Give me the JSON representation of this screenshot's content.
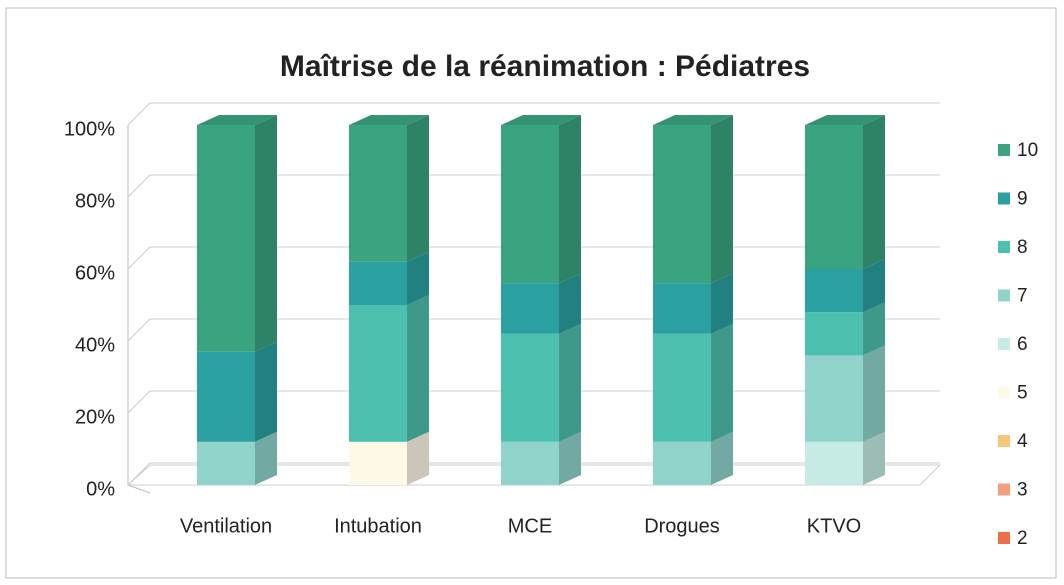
{
  "chart_data": {
    "type": "bar",
    "stacked": true,
    "title": "Maîtrise de la réanimation : Pédiatres",
    "categories": [
      "Ventilation",
      "Intubation",
      "MCE",
      "Drogues",
      "KTVO"
    ],
    "series": [
      {
        "name": "2",
        "color": "#ec6f4a",
        "values": [
          0,
          0,
          0,
          0,
          0
        ]
      },
      {
        "name": "3",
        "color": "#f0a07f",
        "values": [
          0,
          0,
          0,
          0,
          0
        ]
      },
      {
        "name": "4",
        "color": "#f5c77b",
        "values": [
          0,
          0,
          0,
          0,
          0
        ]
      },
      {
        "name": "5",
        "color": "#fdf8e8",
        "values": [
          0,
          12,
          0,
          0,
          0
        ]
      },
      {
        "name": "6",
        "color": "#c6ebe4",
        "values": [
          0,
          0,
          0,
          0,
          12
        ]
      },
      {
        "name": "7",
        "color": "#8fd3cb",
        "values": [
          12,
          0,
          12,
          12,
          24
        ]
      },
      {
        "name": "8",
        "color": "#4dbfae",
        "values": [
          0,
          38,
          30,
          30,
          12
        ]
      },
      {
        "name": "9",
        "color": "#2aa0a0",
        "values": [
          25,
          12,
          14,
          14,
          12
        ]
      },
      {
        "name": "10",
        "color": "#3aa37f",
        "values": [
          63,
          38,
          44,
          44,
          40
        ]
      }
    ],
    "ylim": [
      0,
      100
    ],
    "yticks": [
      {
        "value": 0,
        "label": "0%"
      },
      {
        "value": 20,
        "label": "20%"
      },
      {
        "value": 40,
        "label": "40%"
      },
      {
        "value": 60,
        "label": "60%"
      },
      {
        "value": 80,
        "label": "80%"
      },
      {
        "value": 100,
        "label": "100%"
      }
    ],
    "grid": true,
    "legend": "right"
  }
}
